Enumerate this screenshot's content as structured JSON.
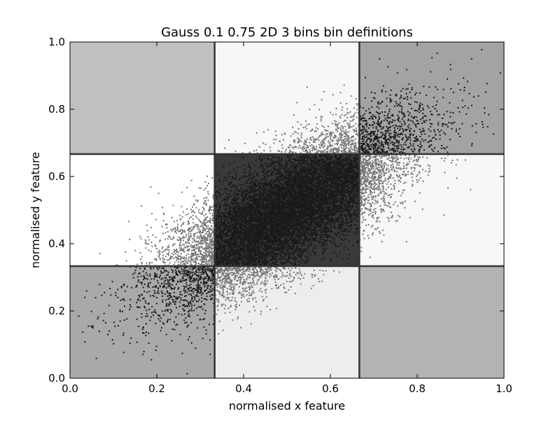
{
  "chart_data": {
    "type": "scatter",
    "title": "Gauss 0.1 0.75 2D 3 bins bin definitions",
    "xlabel": "normalised x feature",
    "ylabel": "normalised y feature",
    "xlim": [
      0.0,
      1.0
    ],
    "ylim": [
      0.0,
      1.0
    ],
    "xticks": [
      "0.0",
      "0.2",
      "0.4",
      "0.6",
      "0.8",
      "1.0"
    ],
    "yticks": [
      "0.0",
      "0.2",
      "0.4",
      "0.6",
      "0.8",
      "1.0"
    ],
    "grid": false,
    "bin_edges": {
      "x": [
        0.0,
        0.3333,
        0.6667,
        1.0
      ],
      "y": [
        0.0,
        0.3333,
        0.6667,
        1.0
      ]
    },
    "bin_colors": [
      [
        "#a9a9a9",
        "#ededed",
        "#b3b3b3"
      ],
      [
        "#ffffff",
        "#3a3a3a",
        "#f7f7f7"
      ],
      [
        "#c0c0c0",
        "#f7f7f7",
        "#a3a3a3"
      ]
    ],
    "distribution": {
      "kind": "bivariate_gaussian",
      "mean": [
        0.5,
        0.5
      ],
      "std": [
        0.14,
        0.13
      ],
      "correlation": 0.75,
      "n_points": 14000
    },
    "point_colors": {
      "dark": "#1a1a1a",
      "light": "#777777"
    }
  }
}
